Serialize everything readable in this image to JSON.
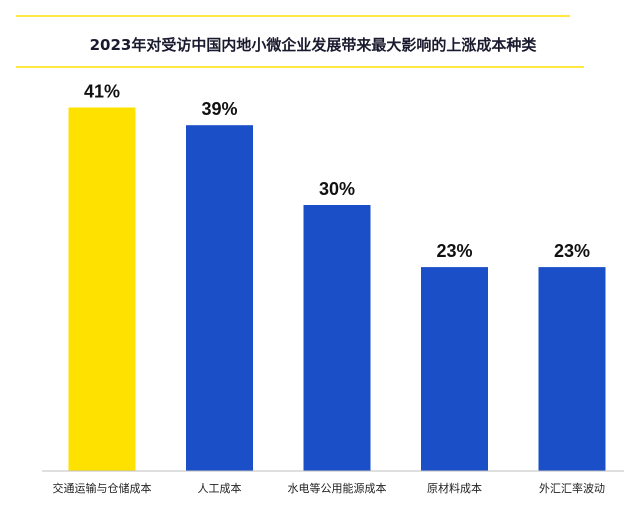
{
  "chart_data": {
    "type": "bar",
    "title": "2023年对受访中国内地小微企业发展带来最大影响的上涨成本种类",
    "categories": [
      "交通运输与仓储成本",
      "人工成本",
      "水电等公用能源成本",
      "原材料成本",
      "外汇汇率波动"
    ],
    "values": [
      41,
      39,
      30,
      23,
      23
    ],
    "value_labels": [
      "41%",
      "39%",
      "30%",
      "23%",
      "23%"
    ],
    "ylim": [
      0,
      45
    ],
    "grid": false,
    "colors": {
      "highlight": "#FFE100",
      "default": "#1A4FC8",
      "title_rule": "#FFE100",
      "axis": "#BFBFBF"
    },
    "highlight_index": 0
  }
}
